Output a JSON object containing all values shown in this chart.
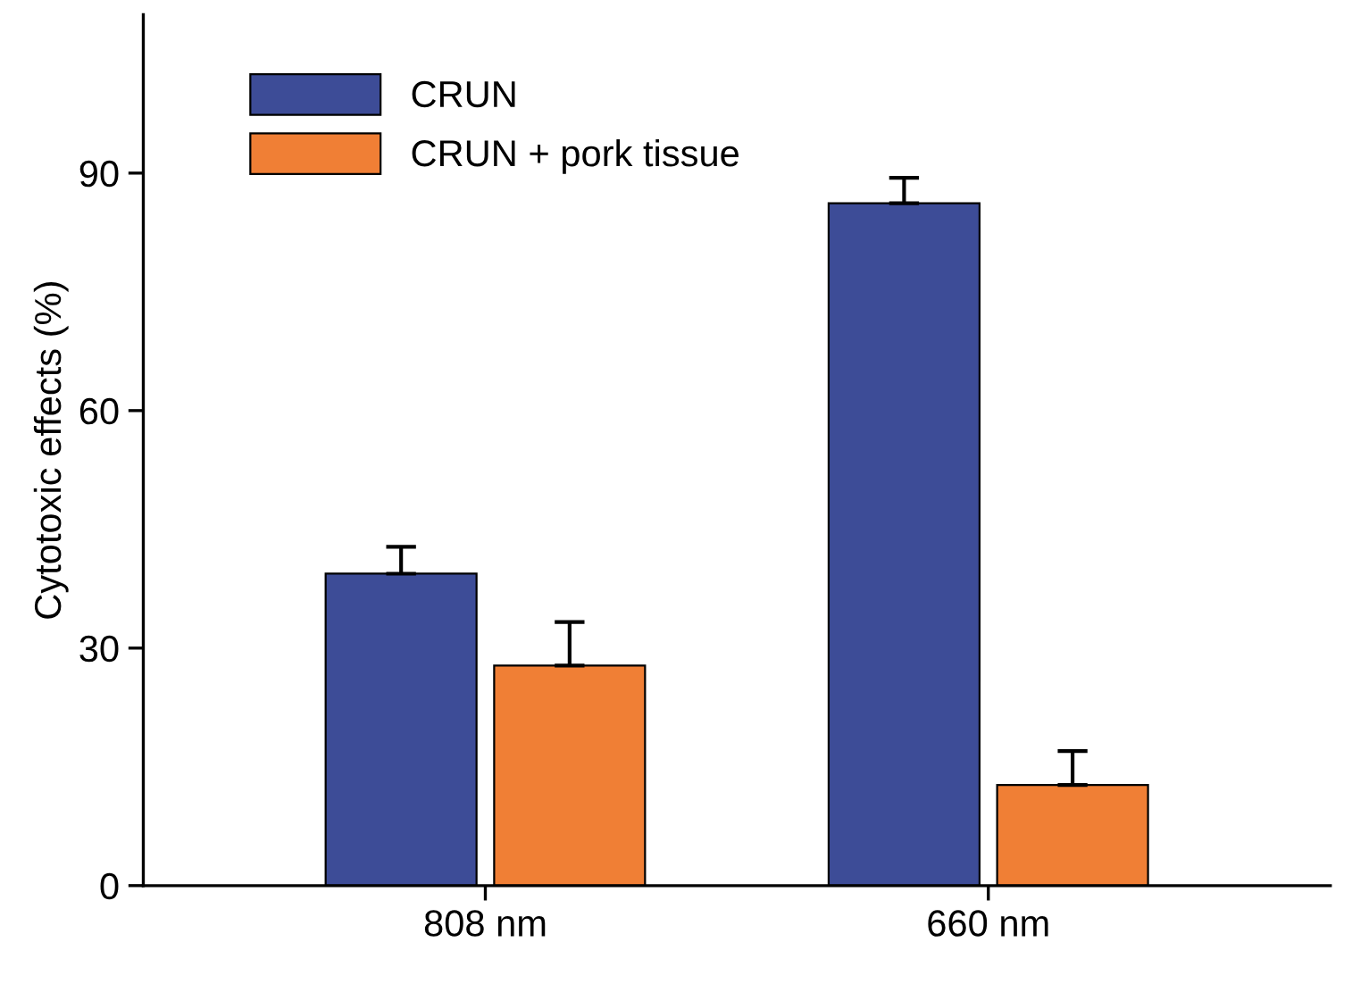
{
  "chart_data": {
    "type": "bar",
    "ylabel": "Cytotoxic effects (%)",
    "categories": [
      "808 nm",
      "660 nm"
    ],
    "series": [
      {
        "name": "CRUN",
        "color": "#3d4c97",
        "values": [
          39.4,
          86.2
        ],
        "errors": [
          [
            39.4,
            42.8
          ],
          [
            86.2,
            89.4
          ]
        ]
      },
      {
        "name": "CRUN + pork tissue",
        "color": "#f07f35",
        "values": [
          27.8,
          12.7
        ],
        "errors": [
          [
            27.8,
            33.3
          ],
          [
            12.7,
            17.0
          ]
        ]
      }
    ],
    "ylim": [
      0,
      110
    ],
    "yticks": [
      0,
      30,
      60,
      90
    ],
    "legend": "top left",
    "grid": false
  }
}
